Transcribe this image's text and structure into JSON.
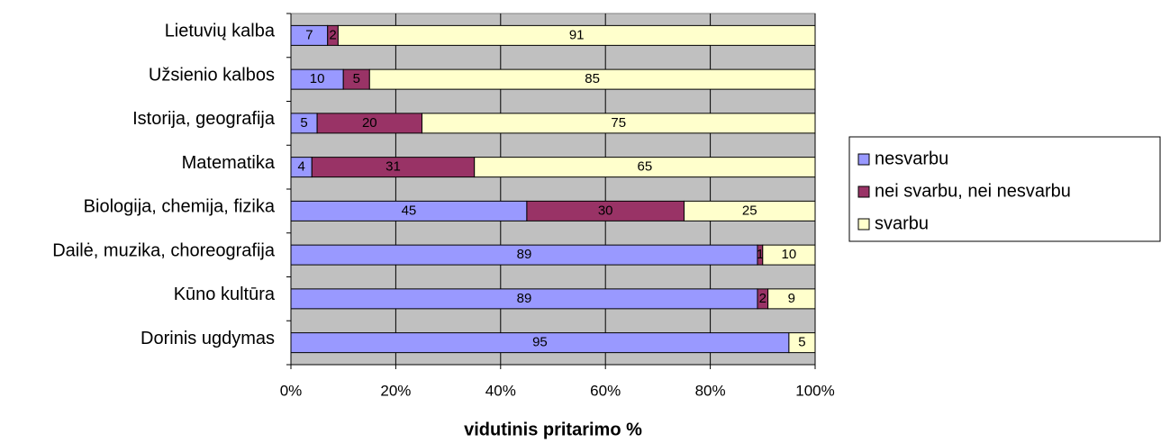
{
  "chart_data": {
    "type": "bar",
    "orientation": "horizontal",
    "stacking": "percent",
    "categories": [
      "Lietuvių kalba",
      "Užsienio kalbos",
      "Istorija, geografija",
      "Matematika",
      "Biologija, chemija, fizika",
      "Dailė, muzika, choreografija",
      "Kūno kultūra",
      "Dorinis ugdymas"
    ],
    "series": [
      {
        "name": "nesvarbu",
        "color": "#9999ff",
        "values": [
          7,
          10,
          5,
          4,
          45,
          89,
          89,
          95
        ]
      },
      {
        "name": "nei svarbu, nei nesvarbu",
        "color": "#993366",
        "values": [
          2,
          5,
          20,
          31,
          30,
          1,
          2,
          0
        ]
      },
      {
        "name": "svarbu",
        "color": "#ffffcc",
        "values": [
          91,
          85,
          75,
          65,
          25,
          10,
          9,
          5
        ]
      }
    ],
    "xlim": [
      0,
      100
    ],
    "xticks": [
      {
        "value": 0,
        "label": "0%"
      },
      {
        "value": 20,
        "label": "20%"
      },
      {
        "value": 40,
        "label": "40%"
      },
      {
        "value": 60,
        "label": "60%"
      },
      {
        "value": 80,
        "label": "80%"
      },
      {
        "value": 100,
        "label": "100%"
      }
    ],
    "x_label": "vidutinis pritarimo %",
    "grid": true,
    "legend": "right"
  }
}
